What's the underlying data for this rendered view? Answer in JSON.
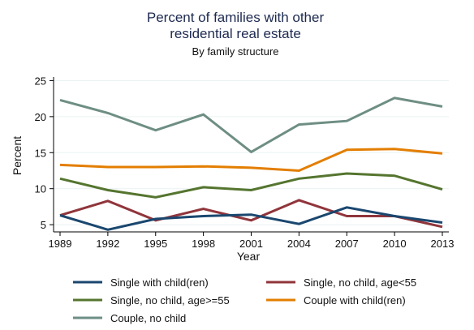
{
  "chart_data": {
    "type": "line",
    "title": [
      "Percent of families with other",
      "residential real estate"
    ],
    "subtitle": "By family structure",
    "xlabel": "Year",
    "ylabel": "Percent",
    "x": [
      1989,
      1992,
      1995,
      1998,
      2001,
      2004,
      2007,
      2010,
      2013
    ],
    "x_tick_labels": [
      "1989",
      "1992",
      "1995",
      "1998",
      "2001",
      "2004",
      "2007",
      "2010",
      "2013"
    ],
    "y_ticks": [
      5,
      10,
      15,
      20,
      25
    ],
    "ylim": [
      4,
      25.5
    ],
    "grid": true,
    "legend_position": "bottom",
    "series": [
      {
        "name": "Single with child(ren)",
        "color": "#1a476f",
        "values": [
          6.3,
          4.3,
          5.8,
          6.2,
          6.4,
          5.1,
          7.4,
          6.2,
          5.3
        ]
      },
      {
        "name": "Single, no child, age<55",
        "color": "#90353b",
        "values": [
          6.3,
          8.3,
          5.6,
          7.2,
          5.6,
          8.4,
          6.2,
          6.2,
          4.7
        ]
      },
      {
        "name": "Single, no child, age>=55",
        "color": "#55752f",
        "values": [
          11.4,
          9.8,
          8.8,
          10.2,
          9.8,
          11.4,
          12.1,
          11.8,
          9.9
        ]
      },
      {
        "name": "Couple with child(ren)",
        "color": "#e37e00",
        "values": [
          13.3,
          13.0,
          13.0,
          13.1,
          12.9,
          12.5,
          15.4,
          15.5,
          14.9
        ]
      },
      {
        "name": "Couple, no child",
        "color": "#6e8e84",
        "values": [
          22.3,
          20.5,
          18.1,
          20.3,
          15.1,
          18.9,
          19.4,
          22.6,
          21.4
        ]
      }
    ]
  }
}
